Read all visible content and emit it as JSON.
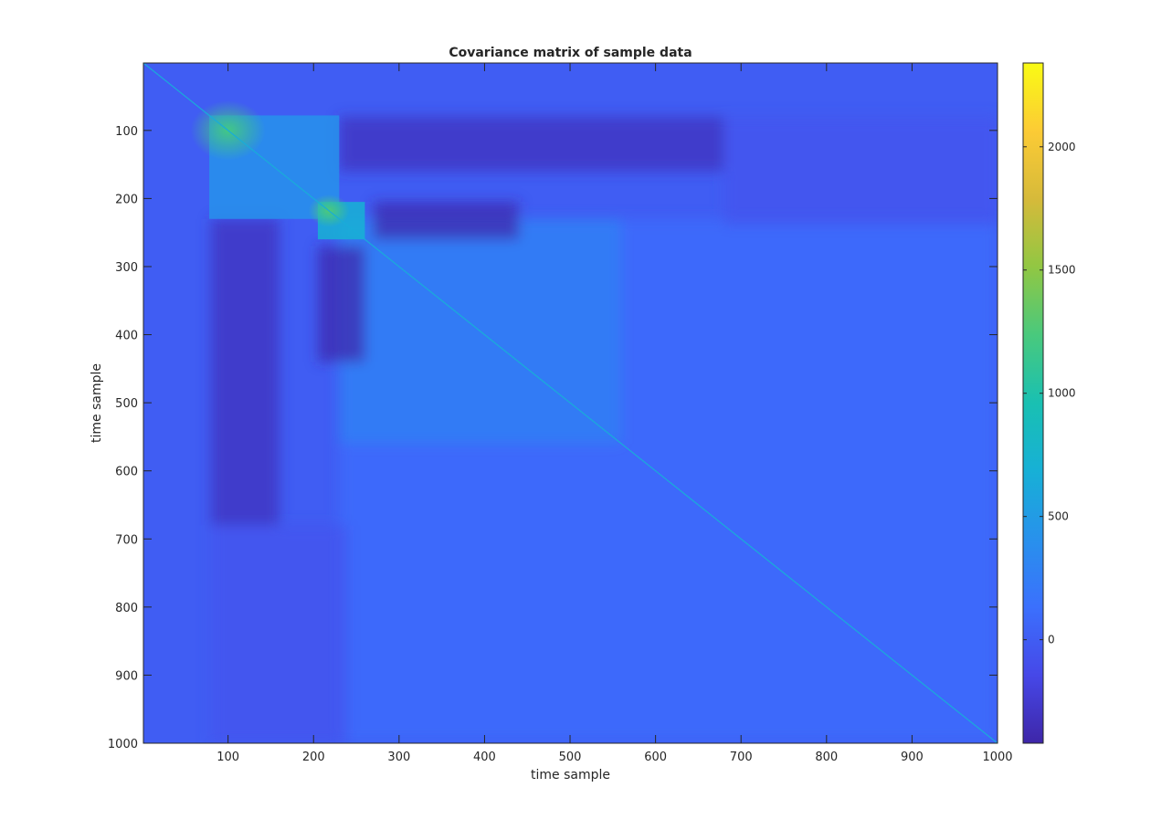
{
  "chart_data": {
    "type": "heatmap",
    "title": "Covariance matrix of sample data",
    "xlabel": "time sample",
    "ylabel": "time sample",
    "xlim": [
      1,
      1000
    ],
    "ylim": [
      1,
      1000
    ],
    "y_direction": "reversed",
    "x_ticks": [
      100,
      200,
      300,
      400,
      500,
      600,
      700,
      800,
      900,
      1000
    ],
    "y_ticks": [
      100,
      200,
      300,
      400,
      500,
      600,
      700,
      800,
      900,
      1000
    ],
    "colorbar": {
      "colormap": "parula",
      "clim": [
        -420,
        2340
      ],
      "ticks": [
        0,
        500,
        1000,
        1500,
        2000
      ],
      "location": "right"
    },
    "background_value": 0,
    "diagonal_value": 650,
    "features": [
      {
        "kind": "block",
        "x": [
          78,
          230
        ],
        "y": [
          78,
          230
        ],
        "value": 420
      },
      {
        "kind": "peak",
        "x": 100,
        "y": 100,
        "value": 1200,
        "spread": 22
      },
      {
        "kind": "block",
        "x": [
          205,
          260
        ],
        "y": [
          205,
          260
        ],
        "value": 700
      },
      {
        "kind": "peak",
        "x": 218,
        "y": 218,
        "value": 1250,
        "spread": 12
      },
      {
        "kind": "region",
        "x": [
          230,
          1000
        ],
        "y": [
          230,
          1000
        ],
        "value": 100
      },
      {
        "kind": "region",
        "x": [
          230,
          560
        ],
        "y": [
          230,
          560
        ],
        "value": 260
      },
      {
        "kind": "band",
        "x": [
          230,
          680
        ],
        "y": [
          80,
          160
        ],
        "value": -330
      },
      {
        "kind": "band",
        "x": [
          80,
          160
        ],
        "y": [
          230,
          680
        ],
        "value": -330
      },
      {
        "kind": "band",
        "x": [
          270,
          440
        ],
        "y": [
          205,
          260
        ],
        "value": -400
      },
      {
        "kind": "band",
        "x": [
          205,
          260
        ],
        "y": [
          270,
          440
        ],
        "value": -400
      },
      {
        "kind": "band",
        "x": [
          680,
          1000
        ],
        "y": [
          80,
          240
        ],
        "value": -60
      },
      {
        "kind": "band",
        "x": [
          80,
          240
        ],
        "y": [
          680,
          1000
        ],
        "value": -60
      }
    ]
  }
}
